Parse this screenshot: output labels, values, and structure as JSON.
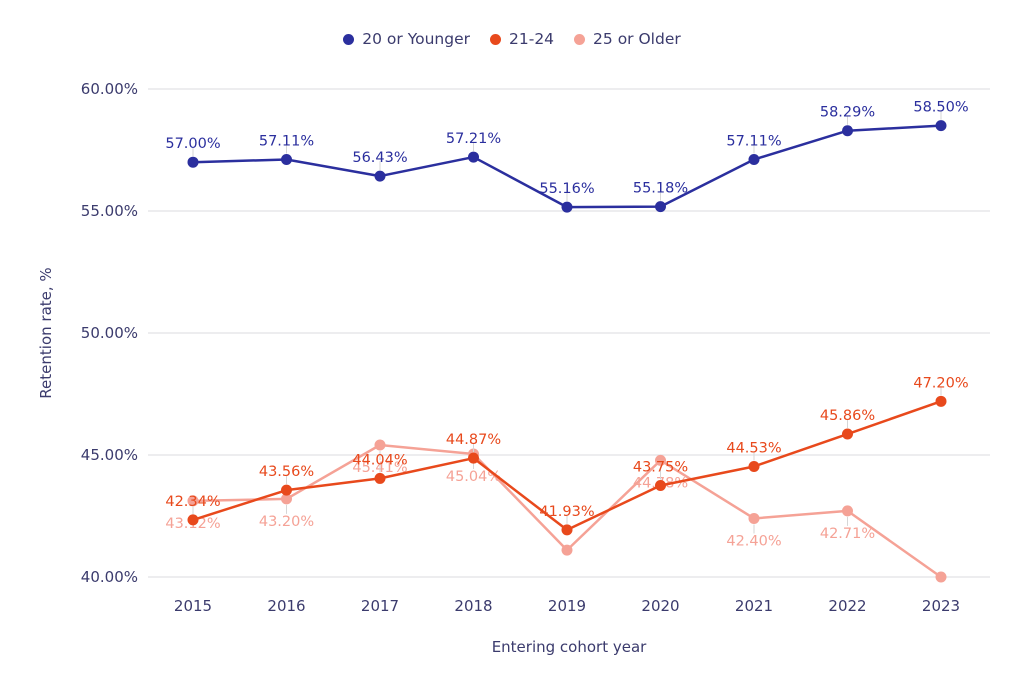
{
  "chart_data": {
    "type": "line",
    "title": "",
    "xlabel": "Entering cohort year",
    "ylabel": "Retention rate, %",
    "x": [
      2015,
      2016,
      2017,
      2018,
      2019,
      2020,
      2021,
      2022,
      2023
    ],
    "x_tick_labels": [
      "2015",
      "2016",
      "2017",
      "2018",
      "2019",
      "2020",
      "2021",
      "2022",
      "2023"
    ],
    "yticks": [
      40,
      45,
      50,
      55,
      60
    ],
    "ytick_labels": [
      "40.00%",
      "45.00%",
      "50.00%",
      "55.00%",
      "60.00%"
    ],
    "ylim": [
      40,
      60
    ],
    "grid": true,
    "legend_position": "top-center",
    "colors": {
      "grid": "#e7e7ea",
      "leader": "#d6d6d6",
      "axis_text": "#3b3b6d"
    },
    "series": [
      {
        "name": "20 or Younger",
        "color": "#2b2f9e",
        "label_side": "above",
        "values": [
          57.0,
          57.11,
          56.43,
          57.21,
          55.16,
          55.18,
          57.11,
          58.29,
          58.5
        ],
        "labels": [
          "57.00%",
          "57.11%",
          "56.43%",
          "57.21%",
          "55.16%",
          "55.18%",
          "57.11%",
          "58.29%",
          "58.50%"
        ]
      },
      {
        "name": "21-24",
        "color": "#e8491c",
        "label_side": "above",
        "values": [
          42.34,
          43.56,
          44.04,
          44.87,
          41.93,
          43.75,
          44.53,
          45.86,
          47.2
        ],
        "labels": [
          "42.34%",
          "43.56%",
          "44.04%",
          "44.87%",
          "41.93%",
          "43.75%",
          "44.53%",
          "45.86%",
          "47.20%"
        ]
      },
      {
        "name": "25 or Older",
        "color": "#f5a296",
        "label_side": "below",
        "values": [
          43.12,
          43.2,
          45.41,
          45.04,
          41.1,
          44.78,
          42.4,
          42.71,
          40.0
        ],
        "labels": [
          "43.12%",
          "43.20%",
          "45.41%",
          "45.04%",
          null,
          "44.78%",
          "42.40%",
          "42.71%",
          null
        ]
      }
    ]
  }
}
